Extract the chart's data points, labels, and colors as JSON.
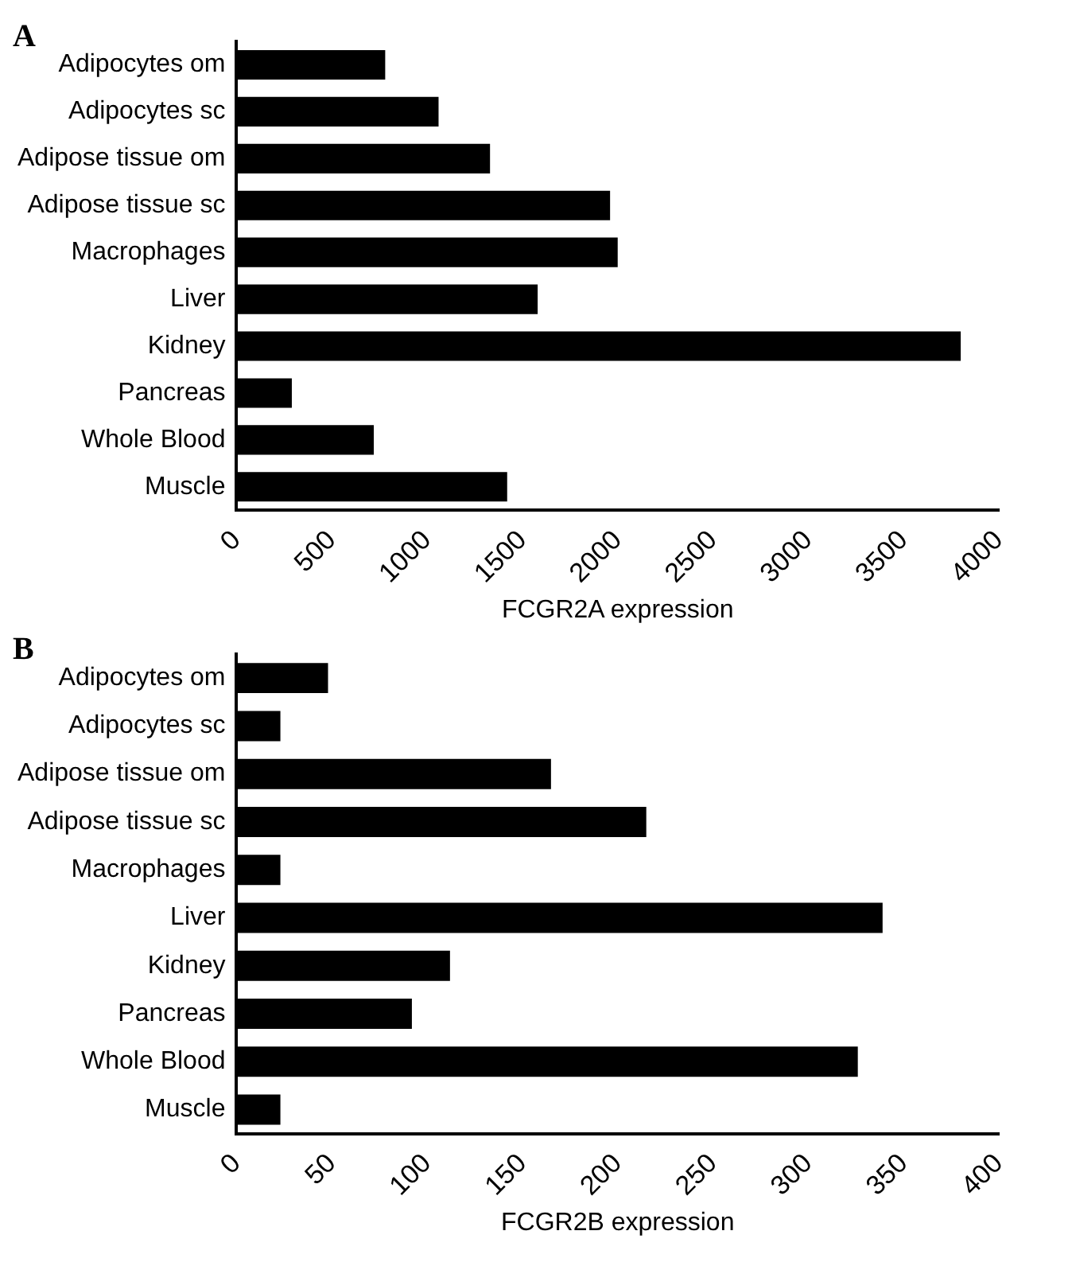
{
  "chart_data": [
    {
      "type": "bar",
      "title": "A",
      "orientation": "horizontal",
      "xlabel": "FCGR2A expression",
      "categories": [
        "Adipocytes om",
        "Adipocytes sc",
        "Adipose tissue om",
        "Adipose tissue sc",
        "Macrophages",
        "Liver",
        "Kidney",
        "Pancreas",
        "Whole Blood",
        "Muscle"
      ],
      "values": [
        780,
        1060,
        1330,
        1960,
        2000,
        1580,
        3800,
        290,
        720,
        1420
      ],
      "color": "#000000",
      "xlim": [
        0,
        4000
      ],
      "xticks": [
        0,
        500,
        1000,
        1500,
        2000,
        2500,
        3000,
        3500,
        4000
      ],
      "grid": false,
      "legend": false
    },
    {
      "type": "bar",
      "title": "B",
      "orientation": "horizontal",
      "xlabel": "FCGR2B expression",
      "categories": [
        "Adipocytes om",
        "Adipocytes sc",
        "Adipose tissue om",
        "Adipose tissue sc",
        "Macrophages",
        "Liver",
        "Kidney",
        "Pancreas",
        "Whole Blood",
        "Muscle"
      ],
      "values": [
        48,
        23,
        165,
        215,
        23,
        339,
        112,
        92,
        326,
        23
      ],
      "color": "#000000",
      "xlim": [
        0,
        400
      ],
      "xticks": [
        0,
        50,
        100,
        150,
        200,
        250,
        300,
        350,
        400
      ],
      "grid": false,
      "legend": false
    }
  ]
}
